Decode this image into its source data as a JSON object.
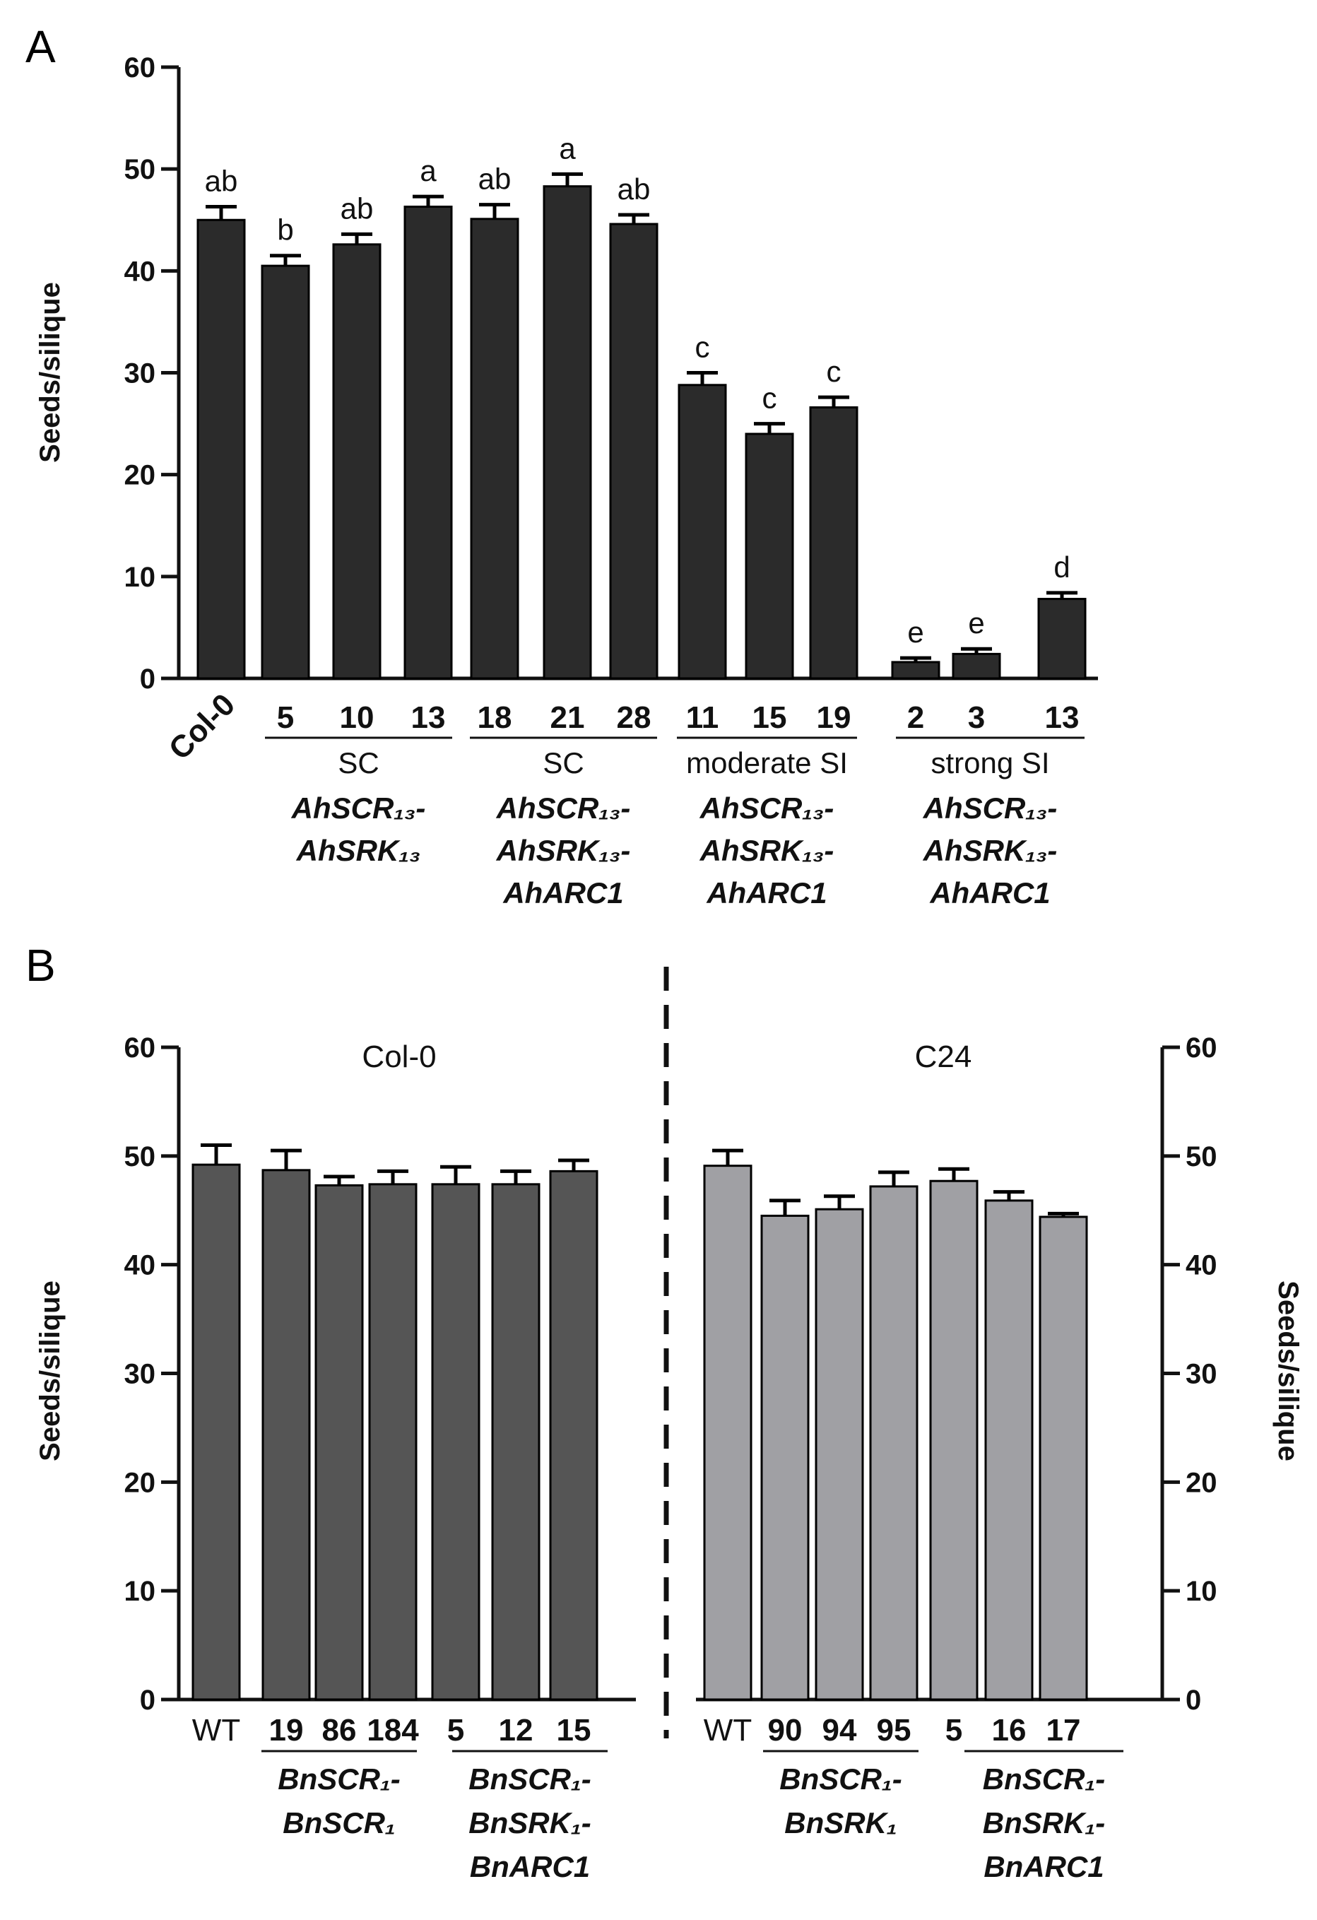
{
  "chart_data": [
    {
      "panel": "A",
      "type": "bar",
      "ylabel": "Seeds/silique",
      "ylim": [
        0,
        60
      ],
      "yticks": [
        "0",
        "10",
        "20",
        "30",
        "40",
        "50",
        "60"
      ],
      "categories": [
        "Col-0",
        "5",
        "10",
        "13",
        "18",
        "21",
        "28",
        "11",
        "15",
        "19",
        "2",
        "3",
        "13"
      ],
      "values": [
        45,
        40.5,
        42.6,
        46.3,
        45.1,
        48.3,
        44.6,
        28.8,
        24.0,
        26.6,
        1.6,
        2.4,
        7.8
      ],
      "errors": [
        1.3,
        1.0,
        1.0,
        1.0,
        1.4,
        1.2,
        0.9,
        1.2,
        1.0,
        1.0,
        0.4,
        0.5,
        0.6
      ],
      "significance": [
        "ab",
        "b",
        "ab",
        "a",
        "ab",
        "a",
        "ab",
        "c",
        "c",
        "c",
        "e",
        "e",
        "d"
      ],
      "bar_color": "#2b2b2b",
      "groups": [
        {
          "phenotype": "SC",
          "gene_lines": [
            "AhSCR₁₃-",
            "AhSRK₁₃"
          ]
        },
        {
          "phenotype": "SC",
          "gene_lines": [
            "AhSCR₁₃-",
            "AhSRK₁₃-",
            "AhARC1"
          ]
        },
        {
          "phenotype": "moderate SI",
          "gene_lines": [
            "AhSCR₁₃-",
            "AhSRK₁₃-",
            "AhARC1"
          ]
        },
        {
          "phenotype": "strong SI",
          "gene_lines": [
            "AhSCR₁₃-",
            "AhSRK₁₃-",
            "AhARC1"
          ]
        }
      ]
    },
    {
      "panel": "B",
      "type": "bar",
      "ylabel_left": "Seeds/silique",
      "ylabel_right": "Seeds/silique",
      "ylim": [
        0,
        60
      ],
      "yticks": [
        "0",
        "10",
        "20",
        "30",
        "40",
        "50",
        "60"
      ],
      "series": [
        {
          "name": "Col-0",
          "categories": [
            "WT",
            "19",
            "86",
            "184",
            "5",
            "12",
            "15"
          ],
          "values": [
            49.2,
            48.7,
            47.3,
            47.4,
            47.4,
            47.4,
            48.6
          ],
          "errors": [
            1.8,
            1.8,
            0.8,
            1.2,
            1.6,
            1.2,
            1.0
          ],
          "color": "#555555",
          "groups": [
            {
              "gene_lines": [
                "BnSCR₁-",
                "BnSCR₁"
              ]
            },
            {
              "gene_lines": [
                "BnSCR₁-",
                "BnSRK₁-",
                "BnARC1"
              ]
            }
          ]
        },
        {
          "name": "C24",
          "categories": [
            "WT",
            "90",
            "94",
            "95",
            "5",
            "16",
            "17"
          ],
          "values": [
            49.1,
            44.5,
            45.1,
            47.2,
            47.7,
            45.9,
            44.4
          ],
          "errors": [
            1.4,
            1.4,
            1.2,
            1.3,
            1.1,
            0.8,
            0.3
          ],
          "color": "#a0a0a4",
          "groups": [
            {
              "gene_lines": [
                "BnSCR₁-",
                "BnSRK₁"
              ]
            },
            {
              "gene_lines": [
                "BnSCR₁-",
                "BnSRK₁-",
                "BnARC1"
              ]
            }
          ]
        }
      ]
    }
  ]
}
